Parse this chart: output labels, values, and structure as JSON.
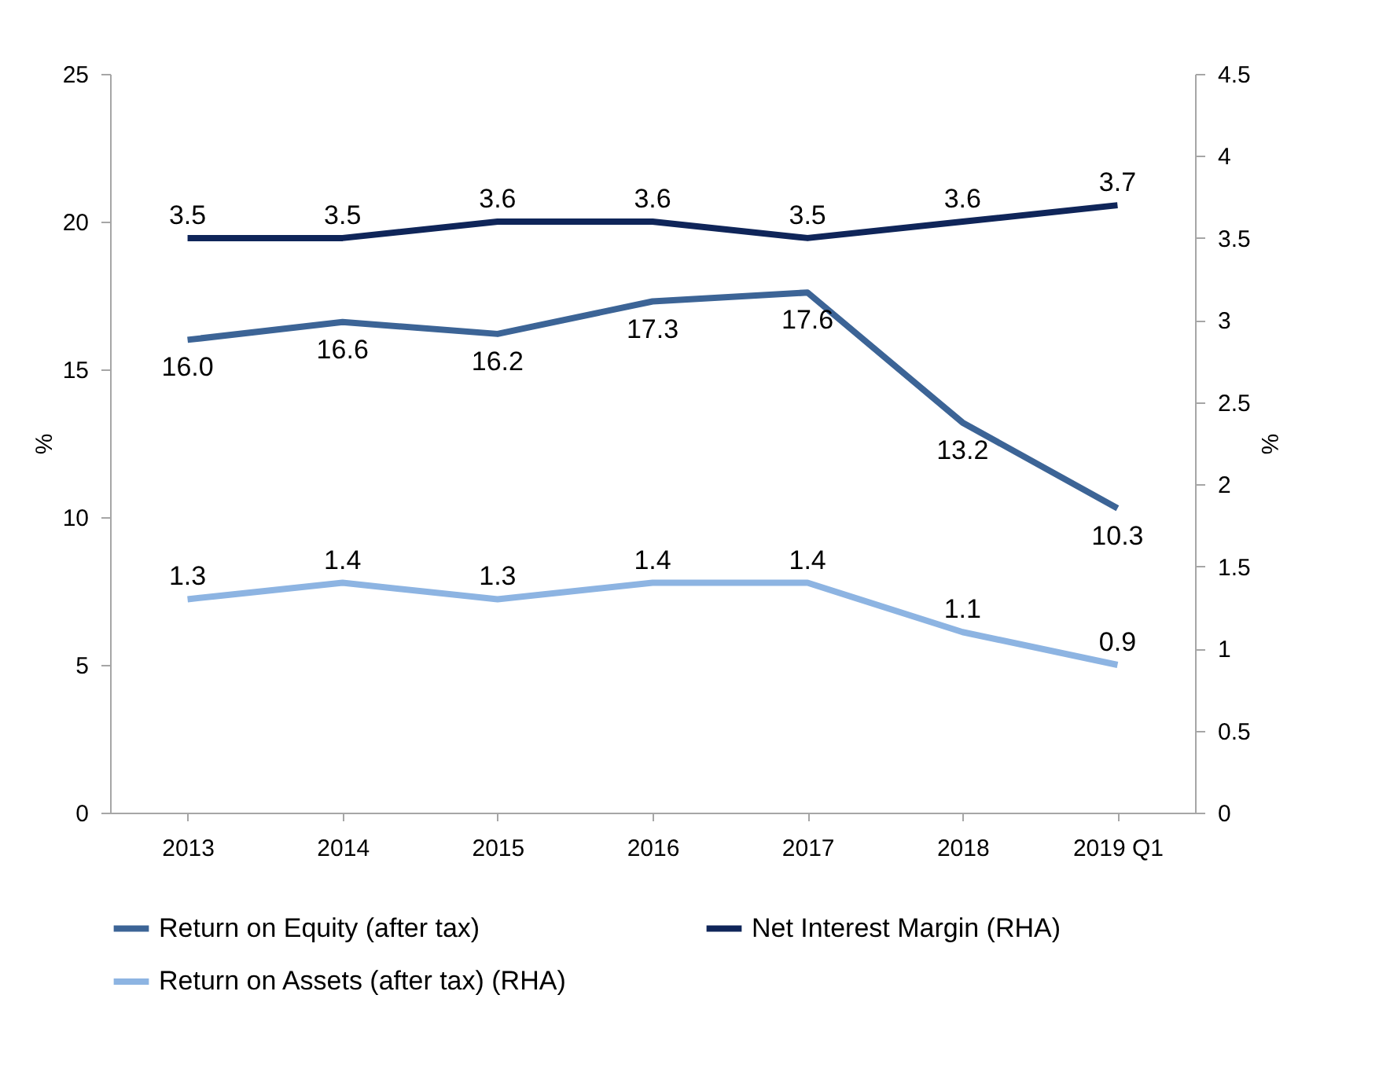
{
  "chart_data": {
    "type": "line",
    "ylabel": "%",
    "y2label": "%",
    "categories": [
      "2013",
      "2014",
      "2015",
      "2016",
      "2017",
      "2018",
      "2019 Q1"
    ],
    "series": [
      {
        "name": "Return on Equity (after tax)",
        "color": "#3c6496",
        "axis": "y",
        "values": [
          16.0,
          16.6,
          16.2,
          17.3,
          17.6,
          13.2,
          10.3
        ],
        "value_labels": [
          "16.0",
          "16.6",
          "16.2",
          "17.3",
          "17.6",
          "13.2",
          "10.3"
        ]
      },
      {
        "name": "Net Interest Margin (RHA)",
        "color": "#0f2559",
        "axis": "y2",
        "values": [
          3.5,
          3.5,
          3.6,
          3.6,
          3.5,
          3.6,
          3.7
        ],
        "value_labels": [
          "3.5",
          "3.5",
          "3.6",
          "3.6",
          "3.5",
          "3.6",
          "3.7"
        ]
      },
      {
        "name": "Return on Assets (after tax) (RHA)",
        "color": "#8db4e2",
        "axis": "y2",
        "values": [
          1.3,
          1.4,
          1.3,
          1.4,
          1.4,
          1.1,
          0.9
        ],
        "value_labels": [
          "1.3",
          "1.4",
          "1.3",
          "1.4",
          "1.4",
          "1.1",
          "0.9"
        ]
      }
    ],
    "ylim": [
      0,
      25
    ],
    "yticks": [
      0,
      5,
      10,
      15,
      20,
      25
    ],
    "y2lim": [
      0,
      4.5
    ],
    "y2ticks": [
      0,
      0.5,
      1,
      1.5,
      2,
      2.5,
      3,
      3.5,
      4,
      4.5
    ],
    "grid": false,
    "legend": "bottom",
    "marker": "none",
    "line_style": "solid"
  }
}
